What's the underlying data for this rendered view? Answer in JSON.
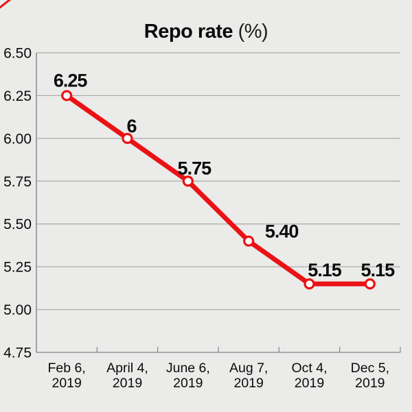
{
  "page": {
    "background": "#ebebea"
  },
  "corner_mark": {
    "icon": "red-corner-slash",
    "color": "#eb1215"
  },
  "title": {
    "bold": "Repo rate",
    "unit": " (%)"
  },
  "chart_data": {
    "type": "line",
    "title": "Repo rate (%)",
    "categories": [
      "Feb 6,\n2019",
      "April 4,\n2019",
      "June 6,\n2019",
      "Aug 7,\n2019",
      "Oct 4,\n2019",
      "Dec 5,\n2019"
    ],
    "values": [
      6.25,
      6.0,
      5.75,
      5.4,
      5.15,
      5.15
    ],
    "point_labels": [
      "6.25",
      "6",
      "5.75",
      "5.40",
      "5.15",
      "5.15"
    ],
    "ylim": [
      4.75,
      6.5
    ],
    "ytick_labels": [
      "6.50",
      "6.25",
      "6.00",
      "5.75",
      "5.50",
      "5.25",
      "5.00",
      "4.75"
    ],
    "ytick_values": [
      6.5,
      6.25,
      6.0,
      5.75,
      5.5,
      5.25,
      5.0,
      4.75
    ],
    "grid": true,
    "legend": "none",
    "colors": {
      "line": "#eb1215",
      "marker_fill": "#ffffff",
      "marker_stroke": "#eb1215",
      "gridline": "#a9a9a7",
      "axis": "#84848a",
      "text": "#0b0b0b"
    }
  }
}
